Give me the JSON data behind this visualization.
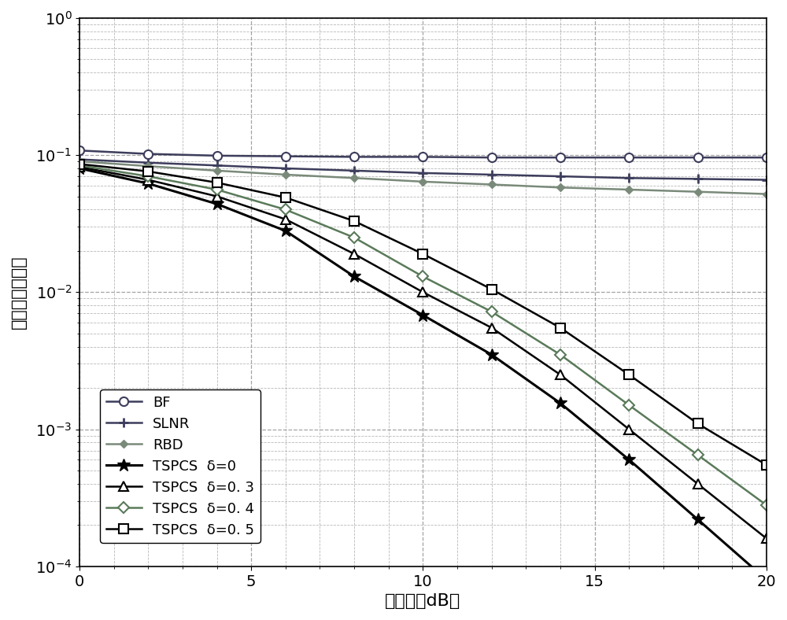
{
  "x": [
    0,
    2,
    4,
    6,
    8,
    10,
    12,
    14,
    16,
    18,
    20
  ],
  "BF": [
    0.108,
    0.102,
    0.099,
    0.098,
    0.097,
    0.097,
    0.096,
    0.096,
    0.096,
    0.096,
    0.096
  ],
  "SLNR": [
    0.093,
    0.088,
    0.084,
    0.08,
    0.077,
    0.074,
    0.072,
    0.07,
    0.068,
    0.067,
    0.066
  ],
  "RBD": [
    0.09,
    0.083,
    0.077,
    0.072,
    0.068,
    0.064,
    0.061,
    0.058,
    0.056,
    0.054,
    0.052
  ],
  "TSPCS_d0": [
    0.08,
    0.062,
    0.044,
    0.028,
    0.013,
    0.0068,
    0.0035,
    0.00155,
    0.0006,
    0.00022,
    8e-05
  ],
  "TSPCS_d03": [
    0.082,
    0.066,
    0.05,
    0.034,
    0.019,
    0.01,
    0.0055,
    0.0025,
    0.001,
    0.0004,
    0.00016
  ],
  "TSPCS_d04": [
    0.084,
    0.07,
    0.056,
    0.04,
    0.025,
    0.013,
    0.0072,
    0.0035,
    0.0015,
    0.00065,
    0.00028
  ],
  "TSPCS_d05": [
    0.086,
    0.076,
    0.063,
    0.049,
    0.033,
    0.019,
    0.0105,
    0.0055,
    0.0025,
    0.0011,
    0.00055
  ],
  "xlabel": "信噪比（dB）",
  "ylabel": "用户平均误码率",
  "xlim": [
    0,
    20
  ],
  "ylim_log": [
    -4,
    0
  ],
  "legend_labels": [
    "BF",
    "SLNR",
    "RBD",
    "TSPCS  δ=0",
    "TSPCS  δ=0. 3",
    "TSPCS  δ=0. 4",
    "TSPCS  δ=0. 5"
  ],
  "colors": {
    "BF": "#3d3d5c",
    "SLNR": "#3d3d5c",
    "RBD": "#7a8a7a",
    "TSPCS_d0": "#000000",
    "TSPCS_d03": "#000000",
    "TSPCS_d04": "#5a7a5a",
    "TSPCS_d05": "#000000"
  },
  "bg_color": "#ffffff",
  "grid_color": "#999999"
}
